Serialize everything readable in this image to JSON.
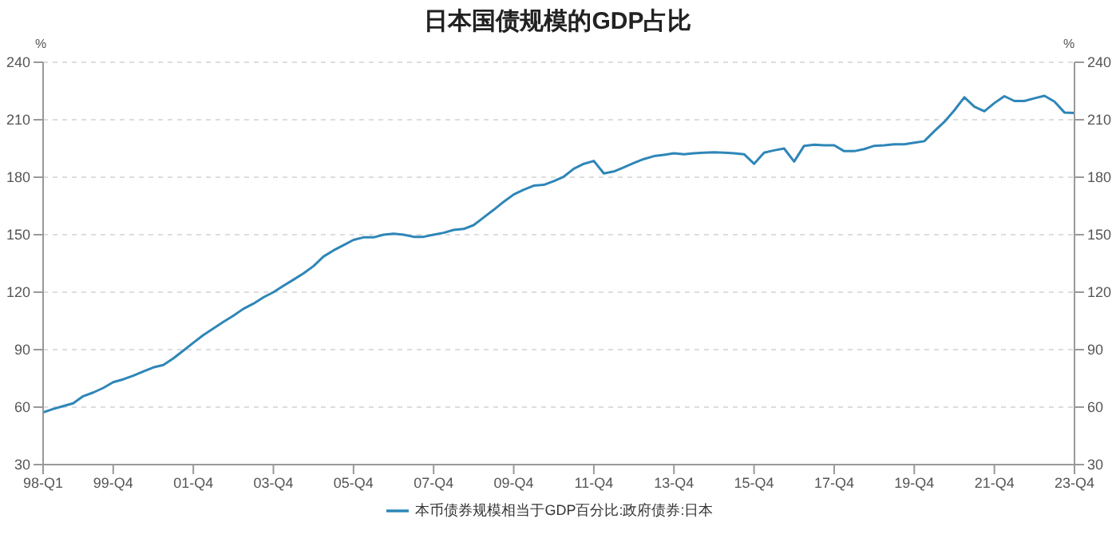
{
  "chart_data": {
    "type": "line",
    "title": "日本国债规模的GDP占比",
    "ylabel": "%",
    "y2label": "%",
    "categories": [
      "98-Q1",
      null,
      null,
      null,
      null,
      null,
      null,
      "99-Q4",
      null,
      null,
      null,
      null,
      null,
      null,
      null,
      "01-Q4",
      null,
      null,
      null,
      null,
      null,
      null,
      null,
      "03-Q4",
      null,
      null,
      null,
      null,
      null,
      null,
      null,
      "05-Q4",
      null,
      null,
      null,
      null,
      null,
      null,
      null,
      "07-Q4",
      null,
      null,
      null,
      null,
      null,
      null,
      null,
      "09-Q4",
      null,
      null,
      null,
      null,
      null,
      null,
      null,
      "11-Q4",
      null,
      null,
      null,
      null,
      null,
      null,
      null,
      "13-Q4",
      null,
      null,
      null,
      null,
      null,
      null,
      null,
      "15-Q4",
      null,
      null,
      null,
      null,
      null,
      null,
      null,
      "17-Q4",
      null,
      null,
      null,
      null,
      null,
      null,
      null,
      "19-Q4",
      null,
      null,
      null,
      null,
      null,
      null,
      null,
      "21-Q4",
      null,
      null,
      null,
      null,
      null,
      null,
      null,
      "23-Q4"
    ],
    "series": [
      {
        "name": "本币债券规模相当于GDP百分比:政府债券:日本",
        "color": "#2e86b8",
        "values": [
          57.3,
          59,
          60.5,
          62,
          65.7,
          67.6,
          70,
          73,
          74.5,
          76.4,
          78.6,
          80.7,
          82,
          85.4,
          89.5,
          93.6,
          97.6,
          101,
          104.5,
          107.7,
          111.3,
          114,
          117.3,
          120,
          123.3,
          126.5,
          129.8,
          133.6,
          138.6,
          141.8,
          144.5,
          147.3,
          148.6,
          148.6,
          150,
          150.5,
          150,
          148.9,
          148.9,
          150,
          151,
          152.5,
          153,
          155,
          159,
          163,
          167.2,
          171,
          173.5,
          175.6,
          176,
          178,
          180.3,
          184.4,
          187,
          188.5,
          182,
          183,
          185.2,
          187.4,
          189.5,
          191,
          191.7,
          192.5,
          192,
          192.5,
          192.8,
          193,
          192.8,
          192.5,
          192,
          187,
          192.8,
          194,
          195,
          188.2,
          196.4,
          197,
          196.7,
          196.7,
          193.6,
          193.6,
          194.7,
          196.4,
          196.7,
          197.2,
          197.2,
          198,
          198.8,
          204,
          208.9,
          214.9,
          221.7,
          216.8,
          214.4,
          218.7,
          222.3,
          219.8,
          219.8,
          221.2,
          222.5,
          219.5,
          213.8,
          213.5
        ]
      }
    ],
    "ylim": [
      30,
      240
    ],
    "yticks": [
      30,
      60,
      90,
      120,
      150,
      180,
      210,
      240
    ],
    "y2lim": [
      30,
      240
    ],
    "y2ticks": [
      30,
      60,
      90,
      120,
      150,
      180,
      210,
      240
    ],
    "grid": "y",
    "legend": "bottom",
    "marker": "none",
    "line_style": "solid"
  }
}
